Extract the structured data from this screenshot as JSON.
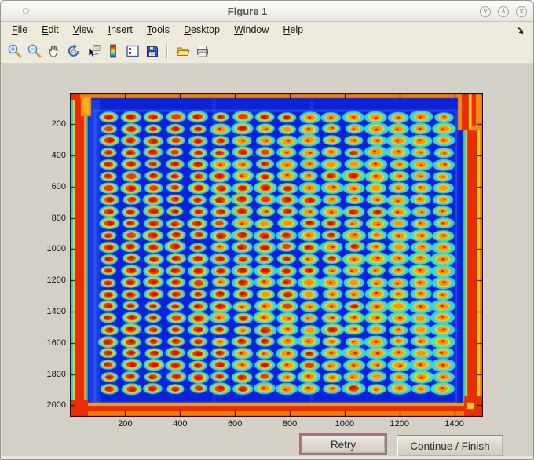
{
  "window": {
    "title": "Figure 1",
    "controls": [
      {
        "name": "minimize",
        "glyph": "∨"
      },
      {
        "name": "maximize",
        "glyph": "∧"
      },
      {
        "name": "close",
        "glyph": "×"
      }
    ]
  },
  "menu": {
    "items": [
      "File",
      "Edit",
      "View",
      "Insert",
      "Tools",
      "Desktop",
      "Window",
      "Help"
    ]
  },
  "toolbar": {
    "icons": [
      "zoom-in",
      "zoom-out",
      "pan",
      "rotate-3d",
      "data-cursor",
      "insert-colorbar",
      "insert-legend",
      "save-figure",
      "separator",
      "open-file",
      "print-figure"
    ]
  },
  "buttons": {
    "retry_label": "Retry",
    "continue_label": "Continue / Finish"
  },
  "chart_data": {
    "type": "heatmap",
    "title": "",
    "description": "Jet-colormap pseudocolor image of a scanned 384-well microplate: 24 rows by 16 columns of wells. Each well shows a red/orange core inside a yellow ring with a cyan halo on a deep blue background; saturated red/orange bands run along all four plate edges. Left-side wells have redder cores, right-side wells are more yellow-orange with small dark-red flecks and larger cyan halos.",
    "grid": {
      "rows": 24,
      "cols": 16
    },
    "x_range": [
      0,
      1500
    ],
    "y_range": [
      0,
      2060
    ],
    "x_ticks": [
      200,
      400,
      600,
      800,
      1000,
      1200,
      1400
    ],
    "y_ticks": [
      200,
      400,
      600,
      800,
      1000,
      1200,
      1400,
      1600,
      1800,
      2000
    ],
    "well_grid": {
      "first_x": 140,
      "dx": 81.3,
      "first_y": 155,
      "dy": 75.6
    },
    "colormap": "jet",
    "colors": {
      "background": "#0d21d6",
      "background_light": "#1630e2",
      "halo_cyan": "#35d6e6",
      "halo_green": "#40e0c0",
      "ring_yellow": "#f2d41a",
      "core_orange": "#f89310",
      "core_red": "#e8380c",
      "core_dark_red": "#c21a06",
      "border_red": "#e82c08",
      "border_orange": "#f87c0c",
      "axis": "#000000"
    }
  }
}
